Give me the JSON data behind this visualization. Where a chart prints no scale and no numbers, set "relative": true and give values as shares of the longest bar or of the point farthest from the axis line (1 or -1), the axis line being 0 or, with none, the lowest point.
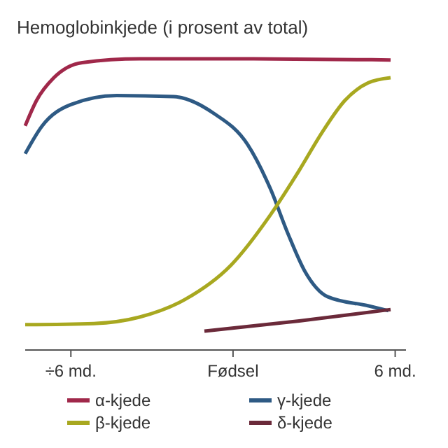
{
  "chart_data": {
    "type": "line",
    "relative": true,
    "title": "Hemoglobinkjede (i prosent av total)",
    "xlim": [
      -7.69,
      6.4
    ],
    "xticks": [
      {
        "value": -6,
        "label": "÷6 md."
      },
      {
        "value": 0,
        "label": "Fødsel"
      },
      {
        "value": 6,
        "label": "6 md."
      }
    ],
    "legend": "bottom",
    "grid": false,
    "series": [
      {
        "name": "α-kjede",
        "color": "#a0284a",
        "x": [
          -7.69,
          -7.27,
          -6.63,
          -5.58,
          -3.46,
          0.76,
          5.83
        ],
        "values": [
          0.77,
          0.857,
          0.935,
          0.987,
          1,
          1,
          0.996
        ]
      },
      {
        "name": "γ-kjede",
        "color": "#2e5a84",
        "x": [
          -7.69,
          -7.06,
          -6,
          -4.31,
          -2.2,
          -0.72,
          0.55,
          1.39,
          2.03,
          2.66,
          3.5,
          4.99,
          5.75
        ],
        "values": [
          0.674,
          0.77,
          0.843,
          0.874,
          0.87,
          0.813,
          0.704,
          0.552,
          0.4,
          0.27,
          0.183,
          0.152,
          0.135
        ]
      },
      {
        "name": "β-kjede",
        "color": "#a8a820",
        "x": [
          -7.69,
          -5.15,
          -3.46,
          -1.77,
          -0.08,
          1.39,
          2.45,
          3.3,
          4.14,
          4.99,
          5.83
        ],
        "values": [
          0.087,
          0.091,
          0.113,
          0.174,
          0.291,
          0.465,
          0.617,
          0.748,
          0.857,
          0.917,
          0.935
        ]
      },
      {
        "name": "δ-kjede",
        "color": "#6b2a3a",
        "x": [
          -1.06,
          2.45,
          5.83
        ],
        "values": [
          0.065,
          0.1,
          0.139
        ]
      }
    ]
  }
}
